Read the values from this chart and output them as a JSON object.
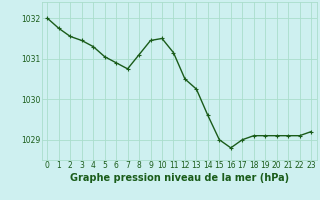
{
  "x": [
    0,
    1,
    2,
    3,
    4,
    5,
    6,
    7,
    8,
    9,
    10,
    11,
    12,
    13,
    14,
    15,
    16,
    17,
    18,
    19,
    20,
    21,
    22,
    23
  ],
  "y": [
    1032.0,
    1031.75,
    1031.55,
    1031.45,
    1031.3,
    1031.05,
    1030.9,
    1030.75,
    1031.1,
    1031.45,
    1031.5,
    1031.15,
    1030.5,
    1030.25,
    1029.6,
    1029.0,
    1028.8,
    1029.0,
    1029.1,
    1029.1,
    1029.1,
    1029.1,
    1029.1,
    1029.2
  ],
  "line_color": "#1a5c1a",
  "marker": "+",
  "markersize": 3,
  "linewidth": 1.0,
  "background_color": "#cef0f0",
  "grid_color": "#aaddcc",
  "xlabel": "Graphe pression niveau de la mer (hPa)",
  "xlabel_fontsize": 7,
  "xlabel_color": "#1a5c1a",
  "tick_color": "#1a5c1a",
  "tick_fontsize": 5.5,
  "ytick_labels": [
    1029,
    1030,
    1031,
    1032
  ],
  "ylim": [
    1028.5,
    1032.4
  ],
  "xlim": [
    -0.5,
    23.5
  ],
  "xtick_labels": [
    "0",
    "1",
    "2",
    "3",
    "4",
    "5",
    "6",
    "7",
    "8",
    "9",
    "10",
    "11",
    "12",
    "13",
    "14",
    "15",
    "16",
    "17",
    "18",
    "19",
    "20",
    "21",
    "22",
    "23"
  ]
}
